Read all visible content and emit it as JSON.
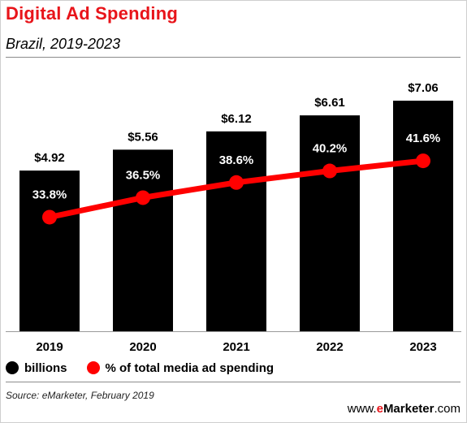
{
  "header": {
    "title": "Digital Ad Spending",
    "subtitle": "Brazil, 2019-2023"
  },
  "chart_data": {
    "type": "bar",
    "title": "Digital Ad Spending",
    "subtitle": "Brazil, 2019-2023",
    "categories": [
      "2019",
      "2020",
      "2021",
      "2022",
      "2023"
    ],
    "series": [
      {
        "name": "billions",
        "type": "bar",
        "values": [
          4.92,
          5.56,
          6.12,
          6.61,
          7.06
        ],
        "labels": [
          "$4.92",
          "$5.56",
          "$6.12",
          "$6.61",
          "$7.06"
        ],
        "color": "#000000"
      },
      {
        "name": "% of total media ad spending",
        "type": "line",
        "values": [
          33.8,
          36.5,
          38.6,
          40.2,
          41.6
        ],
        "labels": [
          "33.8%",
          "36.5%",
          "38.6%",
          "40.2%",
          "41.6%"
        ],
        "color": "#ff0000"
      }
    ],
    "ylim_bars": [
      0,
      7.8
    ],
    "ylim_line": [
      18,
      56
    ],
    "legend_position": "bottom-left",
    "grid": false
  },
  "legend": {
    "items": [
      {
        "label": "billions",
        "color": "#000000"
      },
      {
        "label": "% of total media ad spending",
        "color": "#ff0000"
      }
    ]
  },
  "footer": {
    "source": "Source: eMarketer, February 2019",
    "brand_prefix": "www.",
    "brand_e": "e",
    "brand_name": "Marketer",
    "brand_suffix": ".com"
  },
  "colors": {
    "title": "#e8141a",
    "bars": "#000000",
    "line": "#ff0000"
  }
}
